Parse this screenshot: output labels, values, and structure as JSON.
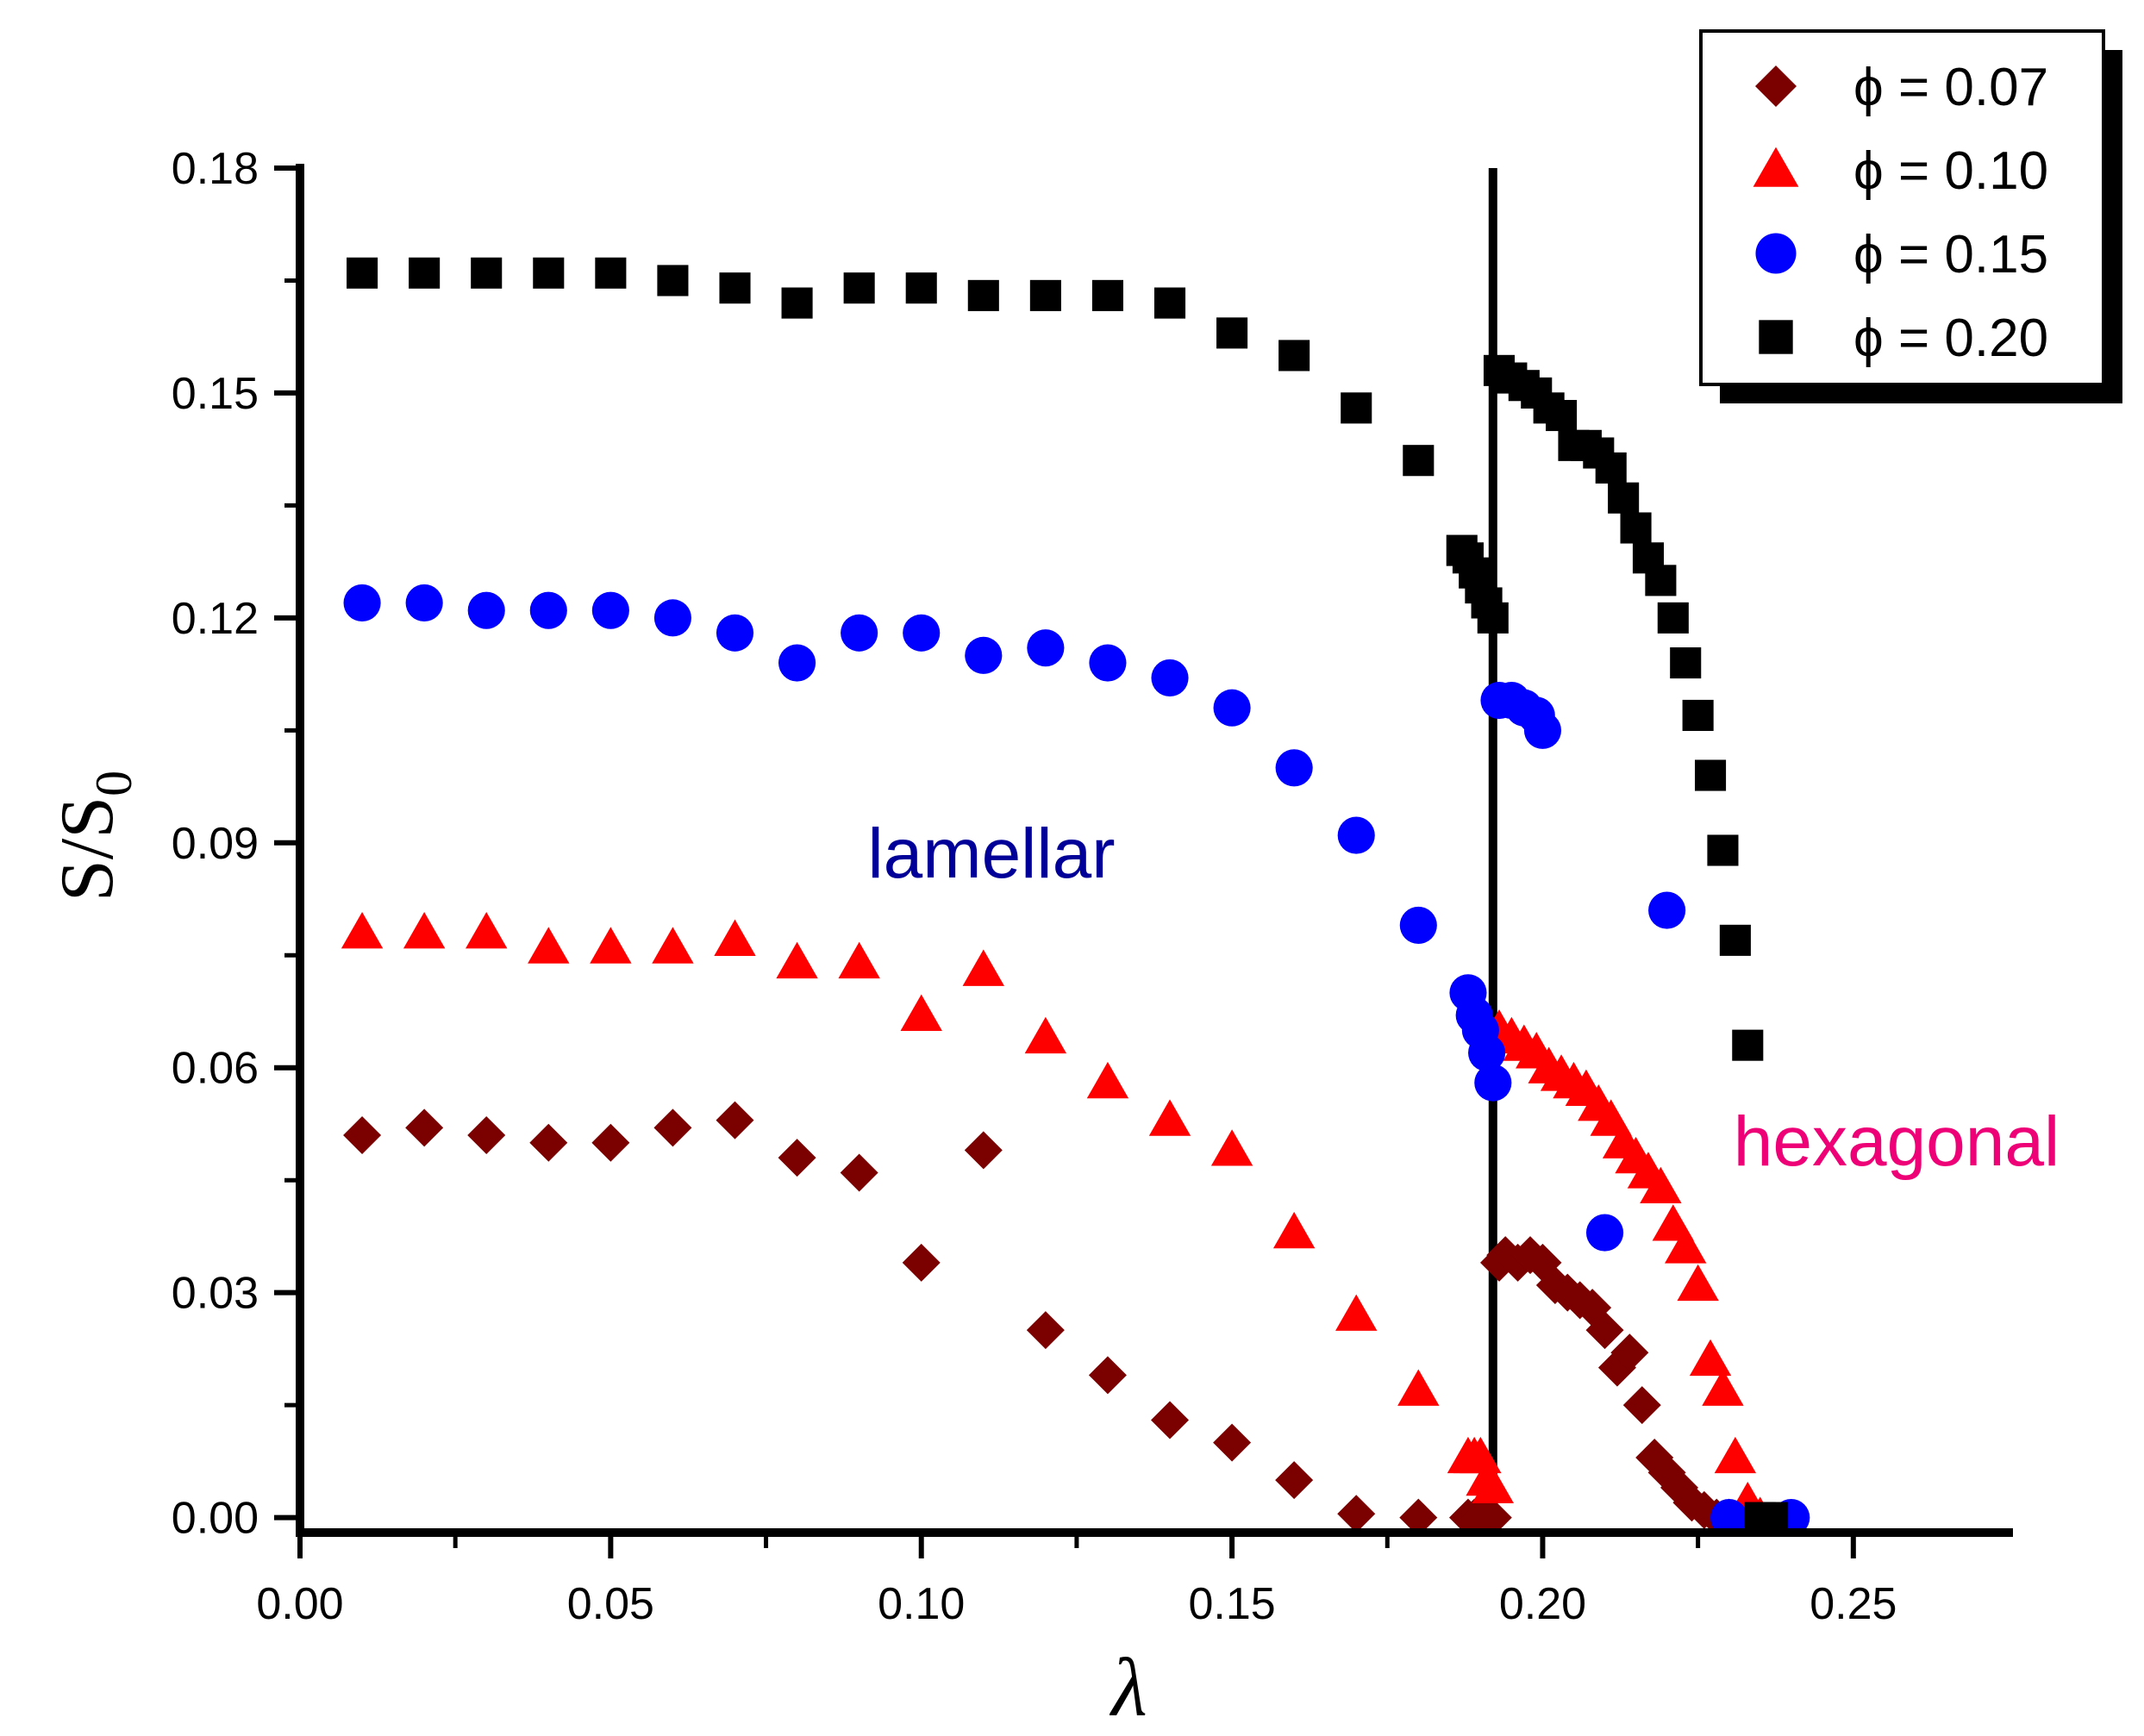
{
  "chart_data": {
    "type": "scatter",
    "title": "",
    "xlabel": "λ",
    "ylabel": "S/S",
    "ylabel_subscript": "0",
    "xlim": [
      0.0,
      0.275
    ],
    "ylim": [
      -0.002,
      0.18
    ],
    "xticks": [
      0.0,
      0.05,
      0.1,
      0.15,
      0.2,
      0.25
    ],
    "xtick_labels": [
      "0.00",
      "0.05",
      "0.10",
      "0.15",
      "0.20",
      "0.25"
    ],
    "yticks": [
      0.0,
      0.03,
      0.06,
      0.09,
      0.12,
      0.15,
      0.18
    ],
    "ytick_labels": [
      "0.00",
      "0.03",
      "0.06",
      "0.09",
      "0.12",
      "0.15",
      "0.18"
    ],
    "vline_x": 0.192,
    "legend_position": "top-right",
    "annotations": [
      {
        "text": "lamellar",
        "x": 0.113,
        "y": 0.088,
        "color": "#000099"
      },
      {
        "text": "hexagonal",
        "x": 0.242,
        "y": 0.045,
        "color": "#ee0077"
      }
    ],
    "series": [
      {
        "name": "ϕ = 0.07",
        "marker": "diamond",
        "color": "#7b0000",
        "x": [
          0.01,
          0.02,
          0.03,
          0.04,
          0.05,
          0.06,
          0.07,
          0.08,
          0.09,
          0.1,
          0.11,
          0.12,
          0.13,
          0.14,
          0.15,
          0.16,
          0.17,
          0.18,
          0.188,
          0.189,
          0.19,
          0.191,
          0.192,
          0.193,
          0.194,
          0.196,
          0.198,
          0.2,
          0.202,
          0.204,
          0.206,
          0.208,
          0.21,
          0.212,
          0.214,
          0.216,
          0.218,
          0.22,
          0.222,
          0.224,
          0.226,
          0.228,
          0.23
        ],
        "y": [
          0.051,
          0.052,
          0.051,
          0.05,
          0.05,
          0.052,
          0.053,
          0.048,
          0.046,
          0.034,
          0.049,
          0.025,
          0.019,
          0.013,
          0.01,
          0.005,
          0.0005,
          0.0,
          0.0,
          0.0,
          0.0,
          0.0,
          0.0,
          0.034,
          0.035,
          0.034,
          0.035,
          0.034,
          0.031,
          0.03,
          0.029,
          0.028,
          0.025,
          0.02,
          0.022,
          0.015,
          0.008,
          0.006,
          0.004,
          0.002,
          0.001,
          0.0,
          0.0
        ]
      },
      {
        "name": "ϕ = 0.10",
        "marker": "triangle",
        "color": "#ff0000",
        "x": [
          0.01,
          0.02,
          0.03,
          0.04,
          0.05,
          0.06,
          0.07,
          0.08,
          0.09,
          0.1,
          0.11,
          0.12,
          0.13,
          0.14,
          0.15,
          0.16,
          0.17,
          0.18,
          0.188,
          0.189,
          0.19,
          0.191,
          0.192,
          0.193,
          0.195,
          0.197,
          0.199,
          0.201,
          0.203,
          0.205,
          0.207,
          0.209,
          0.211,
          0.213,
          0.215,
          0.217,
          0.219,
          0.221,
          0.223,
          0.225,
          0.227,
          0.229,
          0.231,
          0.233,
          0.235
        ],
        "y": [
          0.078,
          0.078,
          0.078,
          0.076,
          0.076,
          0.076,
          0.077,
          0.074,
          0.074,
          0.067,
          0.073,
          0.064,
          0.058,
          0.053,
          0.049,
          0.038,
          0.027,
          0.017,
          0.008,
          0.008,
          0.008,
          0.005,
          0.004,
          0.065,
          0.064,
          0.063,
          0.062,
          0.06,
          0.059,
          0.058,
          0.057,
          0.055,
          0.053,
          0.05,
          0.048,
          0.046,
          0.044,
          0.039,
          0.036,
          0.031,
          0.021,
          0.017,
          0.008,
          0.002,
          0.0
        ]
      },
      {
        "name": "ϕ = 0.15",
        "marker": "circle",
        "color": "#0000ff",
        "x": [
          0.01,
          0.02,
          0.03,
          0.04,
          0.05,
          0.06,
          0.07,
          0.08,
          0.09,
          0.1,
          0.11,
          0.12,
          0.13,
          0.14,
          0.15,
          0.16,
          0.17,
          0.18,
          0.188,
          0.189,
          0.19,
          0.191,
          0.192,
          0.193,
          0.195,
          0.197,
          0.199,
          0.2,
          0.21,
          0.22,
          0.23,
          0.24
        ],
        "y": [
          0.122,
          0.122,
          0.121,
          0.121,
          0.121,
          0.12,
          0.118,
          0.114,
          0.118,
          0.118,
          0.115,
          0.116,
          0.114,
          0.112,
          0.108,
          0.1,
          0.091,
          0.079,
          0.07,
          0.067,
          0.065,
          0.062,
          0.058,
          0.109,
          0.109,
          0.108,
          0.107,
          0.105,
          0.038,
          0.081,
          0.0,
          0.0
        ]
      },
      {
        "name": "ϕ = 0.20",
        "marker": "square",
        "color": "#000000",
        "x": [
          0.01,
          0.02,
          0.03,
          0.04,
          0.05,
          0.06,
          0.07,
          0.08,
          0.09,
          0.1,
          0.11,
          0.12,
          0.13,
          0.14,
          0.15,
          0.16,
          0.17,
          0.18,
          0.187,
          0.188,
          0.189,
          0.19,
          0.191,
          0.192,
          0.193,
          0.195,
          0.197,
          0.199,
          0.201,
          0.203,
          0.205,
          0.207,
          0.209,
          0.211,
          0.213,
          0.215,
          0.217,
          0.219,
          0.221,
          0.223,
          0.225,
          0.227,
          0.229,
          0.231,
          0.233,
          0.235,
          0.237
        ],
        "y": [
          0.166,
          0.166,
          0.166,
          0.166,
          0.166,
          0.165,
          0.164,
          0.162,
          0.164,
          0.164,
          0.163,
          0.163,
          0.163,
          0.162,
          0.158,
          0.155,
          0.148,
          0.141,
          0.129,
          0.128,
          0.126,
          0.124,
          0.122,
          0.12,
          0.153,
          0.152,
          0.151,
          0.15,
          0.148,
          0.147,
          0.143,
          0.143,
          0.142,
          0.14,
          0.136,
          0.132,
          0.128,
          0.125,
          0.12,
          0.114,
          0.107,
          0.099,
          0.089,
          0.077,
          0.063,
          0.0,
          0.0
        ]
      }
    ]
  }
}
